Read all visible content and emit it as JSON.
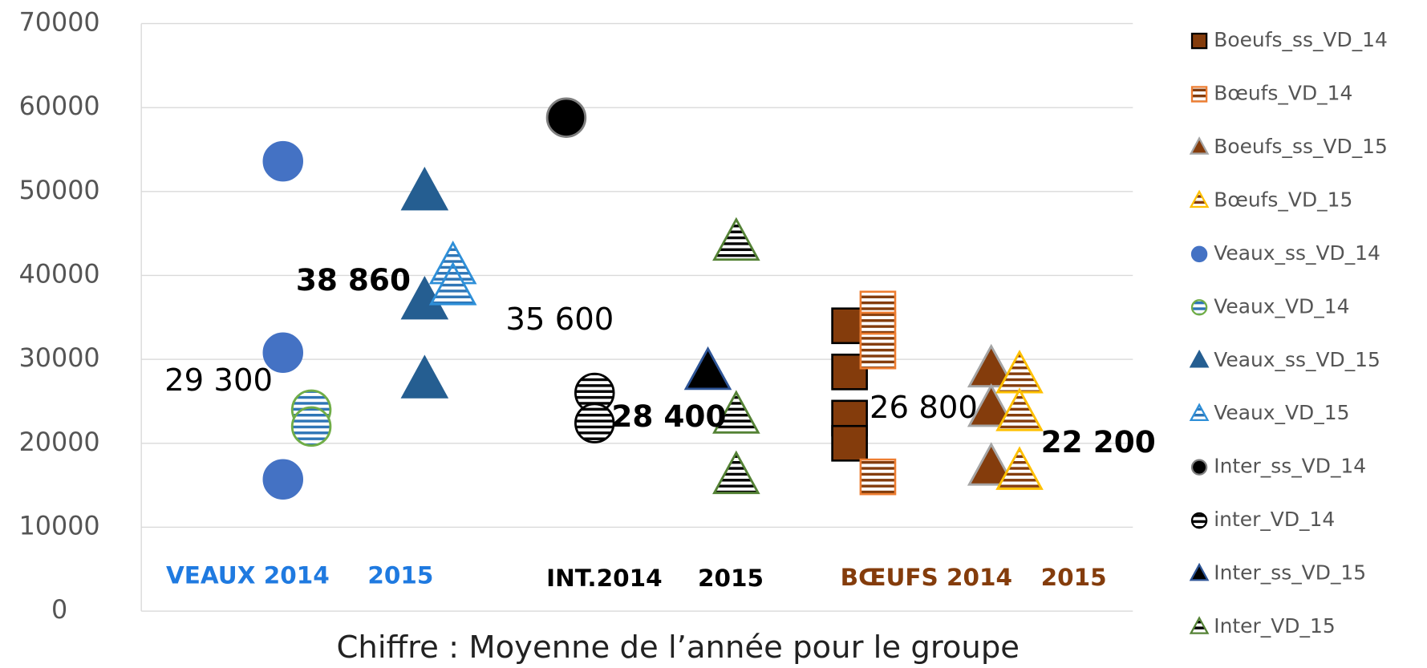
{
  "chart_data": {
    "type": "scatter",
    "xlabel": "Chiffre : Moyenne de l’année pour le groupe",
    "xlim": [
      0,
      14
    ],
    "ylim": [
      0,
      70000
    ],
    "yticks": [
      0,
      10000,
      20000,
      30000,
      40000,
      50000,
      60000,
      70000
    ],
    "grid": true,
    "legend": "right",
    "series": [
      {
        "name": "Boeufs_ss_VD_14",
        "marker": "square",
        "color": "#843c0c",
        "edgecolor": "#000000",
        "striped": false,
        "x": [
          10,
          10,
          10,
          10
        ],
        "values": [
          34000,
          28500,
          23000,
          20000
        ]
      },
      {
        "name": "Bœufs_VD_14",
        "marker": "square",
        "color": "#843c0c",
        "edgecolor": "#ed7d31",
        "striped": true,
        "x": [
          10.4,
          10.4,
          10.4,
          10.4
        ],
        "values": [
          36000,
          33500,
          31000,
          16000
        ]
      },
      {
        "name": "Boeufs_ss_VD_15",
        "marker": "triangle",
        "color": "#843c0c",
        "edgecolor": "#a5a5a5",
        "striped": false,
        "x": [
          12,
          12,
          12
        ],
        "values": [
          28700,
          24000,
          17000
        ]
      },
      {
        "name": "Bœufs_VD_15",
        "marker": "triangle",
        "color": "#843c0c",
        "edgecolor": "#ffc000",
        "striped": true,
        "x": [
          12.4,
          12.4,
          12.4
        ],
        "values": [
          28000,
          23500,
          16500
        ]
      },
      {
        "name": "Veaux_ss_VD_14",
        "marker": "circle",
        "color": "#4472c4",
        "edgecolor": "#4472c4",
        "striped": false,
        "x": [
          2,
          2,
          2
        ],
        "values": [
          53600,
          30800,
          15700
        ]
      },
      {
        "name": "Veaux_VD_14",
        "marker": "circle",
        "color": "#2e75b6",
        "edgecolor": "#70ad47",
        "striped": true,
        "x": [
          2.4,
          2.4
        ],
        "values": [
          24000,
          22000
        ]
      },
      {
        "name": "Veaux_ss_VD_15",
        "marker": "triangle",
        "color": "#255e91",
        "edgecolor": "#255e91",
        "striped": false,
        "x": [
          4,
          4,
          4
        ],
        "values": [
          49800,
          36800,
          27400
        ]
      },
      {
        "name": "Veaux_VD_15",
        "marker": "triangle",
        "color": "#2e75b6",
        "edgecolor": "#2e8fd8",
        "striped": true,
        "x": [
          4.4,
          4.4
        ],
        "values": [
          41000,
          38500
        ]
      },
      {
        "name": "Inter_ss_VD_14",
        "marker": "circle",
        "color": "#000000",
        "edgecolor": "#7f7f7f",
        "striped": false,
        "x": [
          6
        ],
        "values": [
          58800
        ]
      },
      {
        "name": "inter_VD_14",
        "marker": "circle",
        "color": "#000000",
        "edgecolor": "#000000",
        "striped": true,
        "x": [
          6.4,
          6.4
        ],
        "values": [
          26000,
          22400
        ]
      },
      {
        "name": "Inter_ss_VD_15",
        "marker": "triangle",
        "color": "#000000",
        "edgecolor": "#2e5597",
        "striped": false,
        "x": [
          8
        ],
        "values": [
          28400
        ]
      },
      {
        "name": "Inter_VD_15",
        "marker": "triangle",
        "color": "#000000",
        "edgecolor": "#548235",
        "striped": true,
        "x": [
          8.4,
          8.4,
          8.4
        ],
        "values": [
          43800,
          23200,
          16000
        ]
      }
    ],
    "annotations": [
      {
        "text": "29 300",
        "bold": false,
        "color": "#000000"
      },
      {
        "text": "38 860",
        "bold": true,
        "color": "#000000"
      },
      {
        "text": "35 600",
        "bold": false,
        "color": "#000000"
      },
      {
        "text": "28 400",
        "bold": true,
        "color": "#000000"
      },
      {
        "text": "26 800",
        "bold": false,
        "color": "#000000"
      },
      {
        "text": "22 200",
        "bold": true,
        "color": "#000000"
      }
    ],
    "group_labels": [
      {
        "text": "VEAUX 2014",
        "color": "#1f7ae0"
      },
      {
        "text": "2015",
        "color": "#1f7ae0"
      },
      {
        "text": "INT.2014",
        "color": "#000000"
      },
      {
        "text": "2015",
        "color": "#000000"
      },
      {
        "text": "BŒUFS 2014",
        "color": "#843c0c"
      },
      {
        "text": "2015",
        "color": "#843c0c"
      }
    ]
  }
}
